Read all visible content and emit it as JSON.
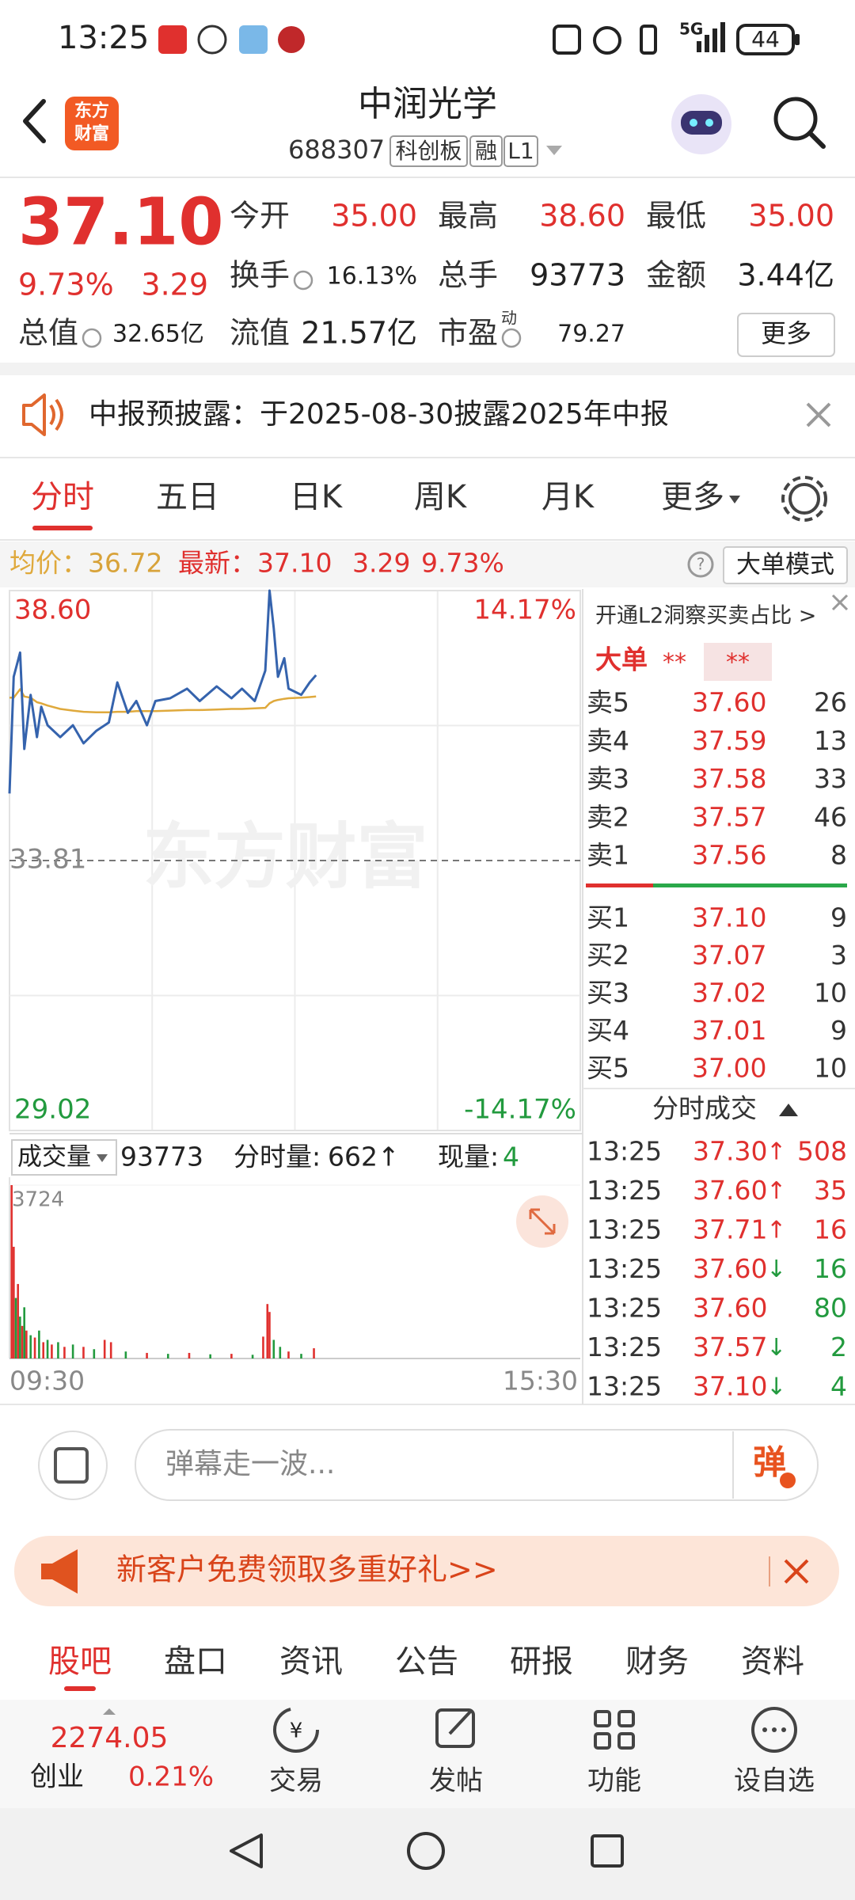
{
  "status_bar": {
    "time": "13:25",
    "network": "5G",
    "battery": "44"
  },
  "header": {
    "logo": [
      "东方",
      "财富"
    ],
    "title": "中润光学",
    "code": "688307",
    "tags": [
      "科创板",
      "融",
      "L1"
    ]
  },
  "quote": {
    "price": "37.10",
    "change_pct": "9.73%",
    "change": "3.29",
    "fields": [
      {
        "label": "今开",
        "value": "35.00"
      },
      {
        "label": "最高",
        "value": "38.60"
      },
      {
        "label": "最低",
        "value": "35.00"
      },
      {
        "label": "换手",
        "value": "16.13%"
      },
      {
        "label": "总手",
        "value": "93773"
      },
      {
        "label": "金额",
        "value": "3.44亿"
      },
      {
        "label": "总值",
        "value": "32.65亿"
      },
      {
        "label": "流值",
        "value": "21.57亿"
      },
      {
        "label": "市盈",
        "value": "79.27",
        "note": "动"
      }
    ],
    "more": "更多"
  },
  "notice": {
    "text": "中报预披露：于2025-08-30披露2025年中报"
  },
  "tabs": {
    "items": [
      "分时",
      "五日",
      "日K",
      "周K",
      "月K",
      "更多"
    ],
    "active": 0
  },
  "info_bar": {
    "avg_value": "36.72",
    "last_value": "37.10",
    "change": "3.29",
    "change_pct": "9.73%",
    "mode_button": "大单模式"
  },
  "volume_header": {
    "label": "成交量",
    "total": "93773",
    "minute_label": "分时量:",
    "minute_value": "662↑",
    "current_label": "现量:",
    "current_value": "4"
  },
  "chart_data": [
    {
      "type": "line",
      "watermark": "东方财富",
      "x": [
        "09:30",
        "09:32",
        "09:35",
        "09:37",
        "09:40",
        "09:43",
        "09:45",
        "09:48",
        "09:54",
        "10:00",
        "10:05",
        "10:11",
        "10:17",
        "10:21",
        "10:26",
        "10:30",
        "10:35",
        "10:39",
        "10:46",
        "10:54",
        "11:00",
        "11:08",
        "11:15",
        "11:20",
        "11:26",
        "13:01",
        "13:03",
        "13:05",
        "13:07",
        "13:10",
        "13:12",
        "13:18",
        "13:22",
        "13:25"
      ],
      "series": [
        {
          "name": "最新：",
          "color": "#3563ad",
          "values": [
            35.0,
            37.07,
            37.5,
            35.79,
            36.75,
            36.0,
            36.54,
            36.21,
            36.0,
            36.21,
            35.89,
            36.11,
            36.26,
            36.97,
            36.43,
            36.64,
            36.21,
            36.64,
            36.69,
            36.86,
            36.64,
            36.9,
            36.69,
            36.86,
            36.64,
            37.18,
            38.6,
            37.93,
            37.07,
            37.4,
            36.86,
            36.75,
            36.97,
            37.1
          ]
        },
        {
          "name": "均价：",
          "color": "#dfa93c",
          "values": [
            36.7,
            36.7,
            36.85,
            36.72,
            36.7,
            36.62,
            36.6,
            36.56,
            36.5,
            36.47,
            36.45,
            36.44,
            36.44,
            36.45,
            36.45,
            36.46,
            36.46,
            36.46,
            36.47,
            36.48,
            36.48,
            36.49,
            36.5,
            36.5,
            36.51,
            36.52,
            36.6,
            36.64,
            36.66,
            36.68,
            36.69,
            36.7,
            36.71,
            36.72
          ]
        }
      ],
      "xlim": [
        "09:30",
        "15:30"
      ],
      "ylim": [
        29.02,
        38.6
      ],
      "yticks": [
        {
          "value": 38.6,
          "label": "38.60"
        },
        {
          "value": 33.81,
          "label": "33.81"
        },
        {
          "value": 29.02,
          "label": "29.02"
        }
      ],
      "ytick_colors": [
        "#e0302e",
        "#888888",
        "#229a3e"
      ],
      "y2lim": [
        -14.17,
        14.17
      ],
      "y2ticks": [
        {
          "value": 14.17,
          "label": "14.17%"
        },
        {
          "value": -14.17,
          "label": "-14.17%"
        }
      ],
      "y2tick_colors": [
        "#e0302e",
        "#229a3e"
      ]
    },
    {
      "type": "bar",
      "x": [
        "09:31",
        "09:32",
        "09:33",
        "09:34",
        "09:35",
        "09:36",
        "09:37",
        "09:38",
        "09:40",
        "09:42",
        "09:44",
        "09:46",
        "09:48",
        "09:50",
        "09:53",
        "09:56",
        "10:00",
        "10:05",
        "10:10",
        "10:15",
        "10:18",
        "10:25",
        "10:35",
        "10:45",
        "10:55",
        "11:05",
        "11:15",
        "11:25",
        "13:00",
        "13:02",
        "13:03",
        "13:05",
        "13:08",
        "13:12",
        "13:18",
        "13:24"
      ],
      "values": [
        3724,
        2400,
        1300,
        1600,
        900,
        700,
        1100,
        600,
        500,
        450,
        600,
        350,
        400,
        300,
        350,
        250,
        300,
        250,
        200,
        400,
        350,
        150,
        120,
        100,
        120,
        90,
        100,
        80,
        470,
        1170,
        1000,
        400,
        250,
        150,
        100,
        220
      ],
      "colors": [
        "#e0302e",
        "#e0302e",
        "#229a3e",
        "#e0302e",
        "#229a3e",
        "#e0302e",
        "#229a3e",
        "#e0302e",
        "#229a3e",
        "#e0302e",
        "#229a3e",
        "#e0302e",
        "#229a3e",
        "#e0302e",
        "#229a3e",
        "#e0302e",
        "#229a3e",
        "#e0302e",
        "#229a3e",
        "#e0302e",
        "#e0302e",
        "#229a3e",
        "#e0302e",
        "#229a3e",
        "#e0302e",
        "#229a3e",
        "#e0302e",
        "#229a3e",
        "#e0302e",
        "#e0302e",
        "#e0302e",
        "#229a3e",
        "#229a3e",
        "#e0302e",
        "#229a3e",
        "#e0302e"
      ],
      "xlim": [
        "09:30",
        "15:30"
      ],
      "xticks": [
        "09:30",
        "15:30"
      ],
      "ylim": [
        0,
        3724
      ],
      "yticks": [
        3724
      ]
    }
  ],
  "order_book": {
    "promo": "开通L2洞察买卖占比 >",
    "big_label": "大单",
    "big_values": [
      "**",
      "**"
    ],
    "asks": [
      {
        "label": "卖5",
        "price": "37.60",
        "volume": "26"
      },
      {
        "label": "卖4",
        "price": "37.59",
        "volume": "13"
      },
      {
        "label": "卖3",
        "price": "37.58",
        "volume": "33"
      },
      {
        "label": "卖2",
        "price": "37.57",
        "volume": "46"
      },
      {
        "label": "卖1",
        "price": "37.56",
        "volume": "8"
      }
    ],
    "bids": [
      {
        "label": "买1",
        "price": "37.10",
        "volume": "9"
      },
      {
        "label": "买2",
        "price": "37.07",
        "volume": "3"
      },
      {
        "label": "买3",
        "price": "37.02",
        "volume": "10"
      },
      {
        "label": "买4",
        "price": "37.01",
        "volume": "9"
      },
      {
        "label": "买5",
        "price": "37.00",
        "volume": "10"
      }
    ],
    "trades_title": "分时成交",
    "trades": [
      {
        "time": "13:25",
        "price": "37.30",
        "arrow": "↑",
        "volume": "508",
        "color": "#e0302e"
      },
      {
        "time": "13:25",
        "price": "37.60",
        "arrow": "↑",
        "volume": "35",
        "color": "#e0302e"
      },
      {
        "time": "13:25",
        "price": "37.71",
        "arrow": "↑",
        "volume": "16",
        "color": "#e0302e"
      },
      {
        "time": "13:25",
        "price": "37.60",
        "arrow": "↓",
        "volume": "16",
        "color": "#229a3e"
      },
      {
        "time": "13:25",
        "price": "37.60",
        "volume": "80",
        "color": "#229a3e"
      },
      {
        "time": "13:25",
        "price": "37.57",
        "arrow": "↓",
        "volume": "2",
        "color": "#229a3e"
      },
      {
        "time": "13:25",
        "price": "37.10",
        "arrow": "↓",
        "volume": "4",
        "color": "#229a3e"
      }
    ]
  },
  "comment_bar": {
    "placeholder": "弹幕走一波...",
    "button": "弹"
  },
  "promo": {
    "text": "新客户免费领取多重好礼>>"
  },
  "bottom_tabs": {
    "items": [
      "股吧",
      "盘口",
      "资讯",
      "公告",
      "研报",
      "财务",
      "资料"
    ],
    "active": 0
  },
  "bottom_nav": {
    "index_value": "2274.05",
    "index_name": "创业",
    "index_change": "0.21%",
    "items": [
      "交易",
      "发帖",
      "功能",
      "设自选"
    ]
  }
}
